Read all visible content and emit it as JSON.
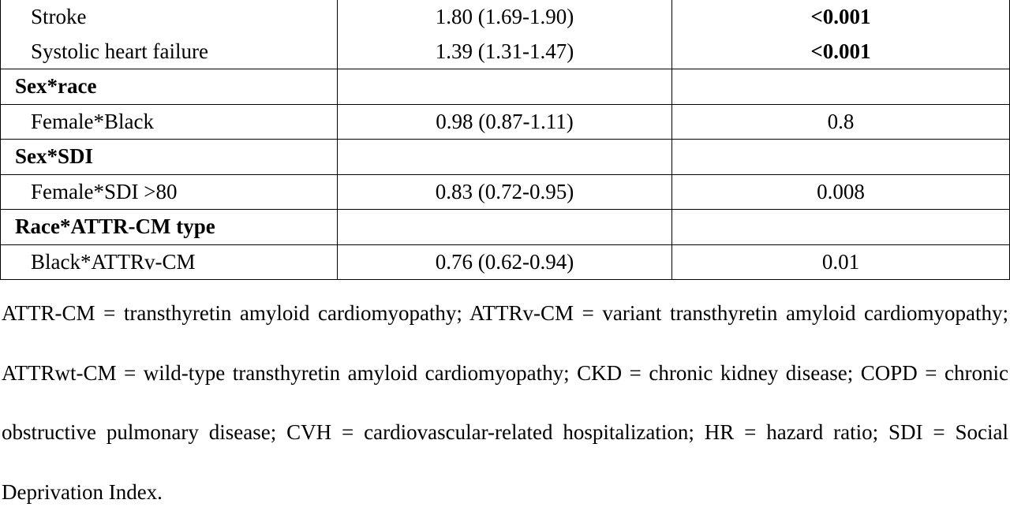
{
  "table": {
    "rows": [
      {
        "type": "item",
        "label": "Stroke",
        "hr": "1.80 (1.69-1.90)",
        "p": "<0.001",
        "p_bold": true
      },
      {
        "type": "item",
        "label": "Systolic heart failure",
        "hr": "1.39 (1.31-1.47)",
        "p": "<0.001",
        "p_bold": true
      },
      {
        "type": "section",
        "label": "Sex*race"
      },
      {
        "type": "item",
        "label": "Female*Black",
        "hr": "0.98 (0.87-1.11)",
        "p": "0.8",
        "p_bold": false
      },
      {
        "type": "section",
        "label": "Sex*SDI"
      },
      {
        "type": "item",
        "label": "Female*SDI >80",
        "hr": "0.83 (0.72-0.95)",
        "p": "0.008",
        "p_bold": false
      },
      {
        "type": "section",
        "label": "Race*ATTR-CM type"
      },
      {
        "type": "item",
        "label": "Black*ATTRv-CM",
        "hr": "0.76 (0.62-0.94)",
        "p": "0.01",
        "p_bold": false
      }
    ]
  },
  "footnote": "ATTR-CM = transthyretin amyloid cardiomyopathy; ATTRv-CM = variant transthyretin amyloid cardiomyopathy; ATTRwt-CM = wild-type transthyretin amyloid cardiomyopathy; CKD = chronic kidney disease; COPD = chronic obstructive pulmonary disease; CVH = cardiovascular-related hospitalization; HR = hazard ratio; SDI = Social Deprivation Index."
}
